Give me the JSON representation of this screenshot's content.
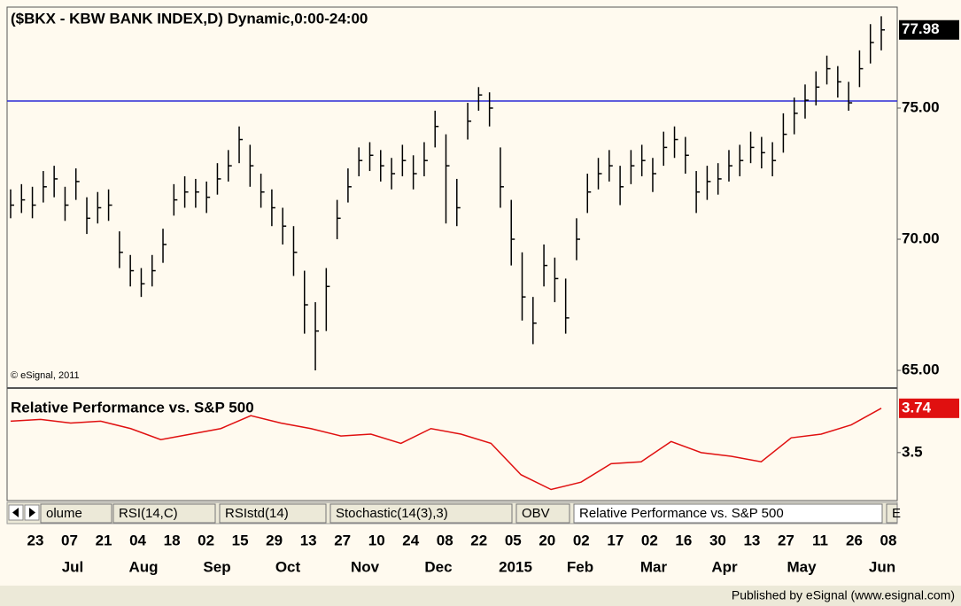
{
  "chart_data": [
    {
      "type": "ohlc",
      "title": "($BKX - KBW BANK INDEX,D) Dynamic,0:00-24:00",
      "watermark": "© eSignal, 2011",
      "color": "#000000",
      "hline": 75.27,
      "hline_color": "#2b2bd6",
      "ylim": [
        64.36,
        78.85
      ],
      "yticks": [
        {
          "value": 65,
          "label": "65.00"
        },
        {
          "value": 70,
          "label": "70.00"
        },
        {
          "value": 75,
          "label": "75.00"
        }
      ],
      "last_label": "77.98",
      "close": [
        71.3,
        71.5,
        71.3,
        72.0,
        72.3,
        71.3,
        72.2,
        70.8,
        71.2,
        71.3,
        69.5,
        68.8,
        68.3,
        68.8,
        69.8,
        71.5,
        71.8,
        71.8,
        71.6,
        72.3,
        72.8,
        73.8,
        72.8,
        71.8,
        71.2,
        70.5,
        69.5,
        67.5,
        66.5,
        68.2,
        70.8,
        72.0,
        73.0,
        73.2,
        72.8,
        72.5,
        73.0,
        72.5,
        73.0,
        74.3,
        72.8,
        71.2,
        74.5,
        75.5,
        75.0,
        72.0,
        70.0,
        67.8,
        66.8,
        69.0,
        68.5,
        67.0,
        70.0,
        71.8,
        72.5,
        72.8,
        72.0,
        72.8,
        73.0,
        72.5,
        73.5,
        73.8,
        73.2,
        71.8,
        72.2,
        72.3,
        72.8,
        73.0,
        73.5,
        73.3,
        73.0,
        74.0,
        74.8,
        75.3,
        75.8,
        76.5,
        76.0,
        75.2,
        76.5,
        77.5,
        77.98
      ],
      "high": [
        71.9,
        72.1,
        72.0,
        72.6,
        72.8,
        72.0,
        72.7,
        71.6,
        71.8,
        71.9,
        70.3,
        69.4,
        68.9,
        69.4,
        70.4,
        72.1,
        72.4,
        72.3,
        72.2,
        72.9,
        73.4,
        74.3,
        73.6,
        72.5,
        71.9,
        71.2,
        70.5,
        68.8,
        67.6,
        68.9,
        71.5,
        72.7,
        73.5,
        73.7,
        73.4,
        73.1,
        73.6,
        73.2,
        73.7,
        74.9,
        74.0,
        72.3,
        75.2,
        75.8,
        75.6,
        73.5,
        71.5,
        69.5,
        67.8,
        69.8,
        69.3,
        68.5,
        70.8,
        72.5,
        73.1,
        73.4,
        72.8,
        73.4,
        73.6,
        73.1,
        74.1,
        74.3,
        73.9,
        72.6,
        72.8,
        72.9,
        73.4,
        73.6,
        74.1,
        73.9,
        73.7,
        74.8,
        75.4,
        75.9,
        76.4,
        77.0,
        76.6,
        76.0,
        77.2,
        78.2,
        78.5
      ],
      "low": [
        70.8,
        71.0,
        70.8,
        71.4,
        71.6,
        70.7,
        71.5,
        70.2,
        70.6,
        70.7,
        68.9,
        68.2,
        67.8,
        68.2,
        69.1,
        70.9,
        71.2,
        71.2,
        71.0,
        71.7,
        72.2,
        72.9,
        72.0,
        71.2,
        70.5,
        69.8,
        68.6,
        66.4,
        65.0,
        66.5,
        70.0,
        71.4,
        72.4,
        72.6,
        72.2,
        71.9,
        72.4,
        71.9,
        72.4,
        73.5,
        70.6,
        70.5,
        73.8,
        74.9,
        74.3,
        71.2,
        69.0,
        66.9,
        66.0,
        68.2,
        67.6,
        66.4,
        69.2,
        71.0,
        71.9,
        72.2,
        71.3,
        72.1,
        72.4,
        71.8,
        72.8,
        73.1,
        72.5,
        71.0,
        71.5,
        71.7,
        72.2,
        72.4,
        72.9,
        72.7,
        72.4,
        73.3,
        74.0,
        74.6,
        75.1,
        75.9,
        75.4,
        74.9,
        75.8,
        76.7,
        77.2
      ]
    },
    {
      "type": "line",
      "title": "Relative Performance vs. S&P 500",
      "color": "#e01010",
      "ylim": [
        3.24,
        3.84
      ],
      "yticks": [
        3.5
      ],
      "last_label": "3.74",
      "values": [
        3.67,
        3.68,
        3.66,
        3.67,
        3.63,
        3.57,
        3.6,
        3.63,
        3.7,
        3.66,
        3.63,
        3.59,
        3.6,
        3.55,
        3.63,
        3.6,
        3.55,
        3.38,
        3.3,
        3.34,
        3.44,
        3.45,
        3.56,
        3.5,
        3.48,
        3.45,
        3.58,
        3.6,
        3.65,
        3.74
      ]
    }
  ],
  "x_axis": {
    "days": [
      "23",
      "07",
      "21",
      "04",
      "18",
      "02",
      "15",
      "29",
      "13",
      "27",
      "10",
      "24",
      "08",
      "22",
      "05",
      "20",
      "02",
      "17",
      "02",
      "16",
      "30",
      "13",
      "27",
      "11",
      "26",
      "08"
    ],
    "months": [
      "Jul",
      "Aug",
      "Sep",
      "Oct",
      "Nov",
      "Dec",
      "2015",
      "Feb",
      "Mar",
      "Apr",
      "May",
      "Jun"
    ]
  },
  "tabs": [
    "olume",
    "RSI(14,C)",
    "RSIstd(14)",
    "Stochastic(14(3),3)",
    "OBV",
    "Relative Performance vs. S&P 500",
    "E"
  ],
  "footer": "Published by eSignal (www.esignal.com)"
}
